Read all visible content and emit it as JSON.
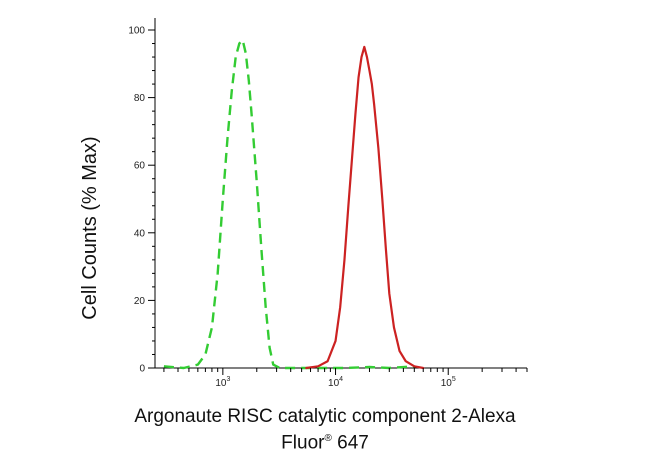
{
  "chart_data": {
    "type": "line",
    "title": "",
    "xlabel_line1": "Argonaute RISC catalytic component 2-Alexa",
    "xlabel_line2_a": "Fluor",
    "xlabel_sup": "®",
    "xlabel_line2_b": "647",
    "ylabel": "Cell Counts (% Max)",
    "x_scale": "log",
    "xlim": [
      250,
      500000
    ],
    "ylim": [
      0,
      100
    ],
    "y_ticks": [
      "0",
      "20",
      "40",
      "60",
      "80",
      "100"
    ],
    "x_ticks": [
      {
        "value": 1000,
        "base": "10",
        "exp": "3"
      },
      {
        "value": 10000,
        "base": "10",
        "exp": "4"
      },
      {
        "value": 100000,
        "base": "10",
        "exp": "5"
      }
    ],
    "grid": false,
    "legend": "none",
    "series": [
      {
        "color": "#33cc33",
        "style": "dashed",
        "points": [
          [
            300,
            0.5
          ],
          [
            450,
            0
          ],
          [
            600,
            1
          ],
          [
            700,
            4
          ],
          [
            800,
            12
          ],
          [
            900,
            28
          ],
          [
            1000,
            50
          ],
          [
            1100,
            68
          ],
          [
            1200,
            82
          ],
          [
            1300,
            92
          ],
          [
            1400,
            96
          ],
          [
            1500,
            97
          ],
          [
            1600,
            93
          ],
          [
            1700,
            85
          ],
          [
            1800,
            75
          ],
          [
            2000,
            55
          ],
          [
            2200,
            35
          ],
          [
            2400,
            18
          ],
          [
            2600,
            6
          ],
          [
            2800,
            1
          ],
          [
            3200,
            0
          ],
          [
            5000,
            0
          ],
          [
            12000,
            0
          ],
          [
            20000,
            0.3
          ],
          [
            30000,
            0
          ],
          [
            50000,
            0.5
          ]
        ]
      },
      {
        "color": "#cc2222",
        "style": "solid",
        "points": [
          [
            5500,
            0
          ],
          [
            7000,
            0.5
          ],
          [
            8500,
            2
          ],
          [
            10000,
            8
          ],
          [
            11000,
            18
          ],
          [
            12000,
            32
          ],
          [
            13000,
            48
          ],
          [
            14000,
            62
          ],
          [
            15000,
            75
          ],
          [
            16000,
            86
          ],
          [
            17000,
            92
          ],
          [
            18000,
            95
          ],
          [
            19000,
            92
          ],
          [
            20000,
            88
          ],
          [
            21000,
            84
          ],
          [
            22000,
            78
          ],
          [
            24000,
            65
          ],
          [
            26000,
            50
          ],
          [
            28000,
            35
          ],
          [
            30000,
            22
          ],
          [
            33000,
            12
          ],
          [
            37000,
            5
          ],
          [
            42000,
            2
          ],
          [
            50000,
            0.5
          ],
          [
            60000,
            0
          ]
        ]
      }
    ]
  }
}
